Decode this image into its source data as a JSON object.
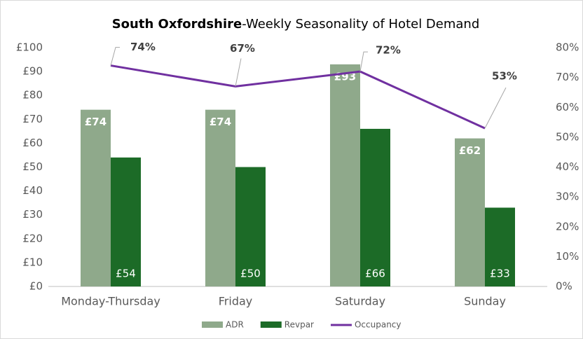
{
  "chart_data": {
    "type": "bar-line",
    "title_parts": [
      "South Oxfordshire",
      "-Weekly Seasonality of Hotel Demand"
    ],
    "categories": [
      "Monday-Thursday",
      "Friday",
      "Saturday",
      "Sunday"
    ],
    "series": [
      {
        "name": "ADR",
        "type": "bar",
        "color": "#8fa98b",
        "values": [
          74,
          74,
          93,
          62
        ],
        "value_labels": [
          "£74",
          "£74",
          "£93",
          "£62"
        ]
      },
      {
        "name": "Revpar",
        "type": "bar",
        "color": "#1c6b27",
        "values": [
          54,
          50,
          66,
          33
        ],
        "value_labels": [
          "£54",
          "£50",
          "£66",
          "£33"
        ]
      },
      {
        "name": "Occupancy",
        "type": "line",
        "axis": "y2",
        "color": "#7030a0",
        "values": [
          74,
          67,
          72,
          53
        ],
        "value_labels": [
          "74%",
          "67%",
          "72%",
          "53%"
        ]
      }
    ],
    "ylim": [
      0,
      100
    ],
    "yticks": [
      {
        "value": 0,
        "label": "£0"
      },
      {
        "value": 10,
        "label": "£10"
      },
      {
        "value": 20,
        "label": "£20"
      },
      {
        "value": 30,
        "label": "£30"
      },
      {
        "value": 40,
        "label": "£40"
      },
      {
        "value": 50,
        "label": "£50"
      },
      {
        "value": 60,
        "label": "£60"
      },
      {
        "value": 70,
        "label": "£70"
      },
      {
        "value": 80,
        "label": "£80"
      },
      {
        "value": 90,
        "label": "£90"
      },
      {
        "value": 100,
        "label": "£100"
      }
    ],
    "y2lim": [
      0,
      80
    ],
    "y2ticks": [
      {
        "value": 0,
        "label": "0%"
      },
      {
        "value": 10,
        "label": "10%"
      },
      {
        "value": 20,
        "label": "20%"
      },
      {
        "value": 30,
        "label": "30%"
      },
      {
        "value": 40,
        "label": "40%"
      },
      {
        "value": 50,
        "label": "50%"
      },
      {
        "value": 60,
        "label": "60%"
      },
      {
        "value": 70,
        "label": "70%"
      },
      {
        "value": 80,
        "label": "80%"
      }
    ],
    "grid": false,
    "legend": "bottom"
  }
}
